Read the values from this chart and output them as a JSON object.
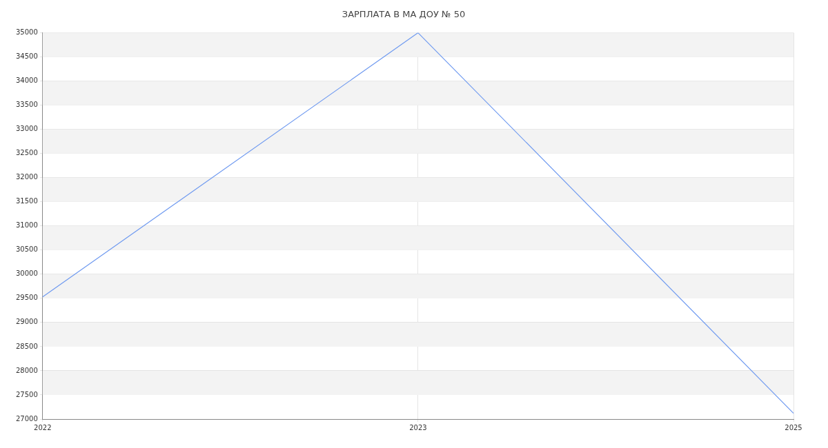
{
  "chart_data": {
    "type": "line",
    "title": "ЗАРПЛАТА В МА ДОУ № 50",
    "categories": [
      "2022",
      "2023",
      "2025"
    ],
    "series": [
      {
        "color": "#6f9af0",
        "values": [
          29530,
          35000,
          27120
        ]
      }
    ],
    "ylim": [
      27000,
      35000
    ],
    "yticks": [
      27000,
      27500,
      28000,
      28500,
      29000,
      29500,
      30000,
      30500,
      31000,
      31500,
      32000,
      32500,
      33000,
      33500,
      34000,
      34500,
      35000
    ],
    "grid": true,
    "legend": false,
    "marker": "none",
    "line_style": "solid"
  }
}
